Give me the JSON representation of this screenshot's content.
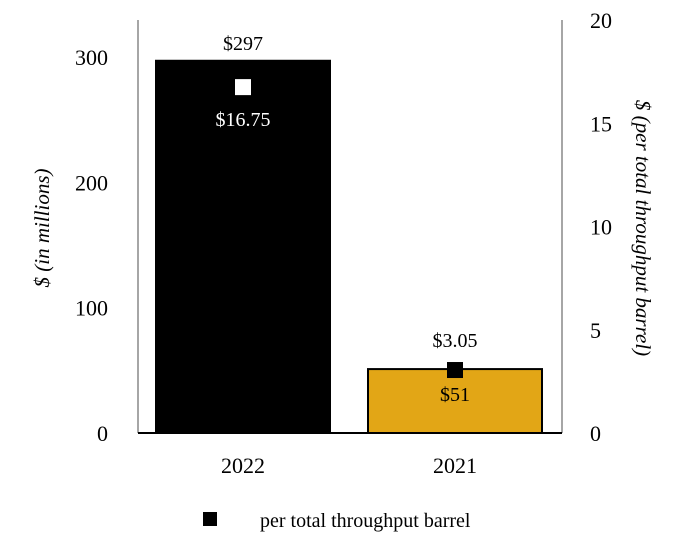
{
  "chart_data": {
    "type": "bar",
    "categories": [
      "2022",
      "2021"
    ],
    "series": [
      {
        "values": [
          297,
          51
        ],
        "value_labels": [
          "$297",
          "$51"
        ],
        "colors": [
          "#000000",
          "#e2a616"
        ],
        "axis": "left"
      },
      {
        "name": "per total throughput barrel",
        "type": "scatter",
        "values": [
          16.75,
          3.05
        ],
        "value_labels": [
          "$16.75",
          "$3.05"
        ],
        "marker_colors": [
          "#ffffff",
          "#000000"
        ],
        "axis": "right"
      }
    ],
    "ylabel": "$ (in millions)",
    "ylim": [
      0,
      300
    ],
    "yticks": [
      0,
      100,
      200,
      300
    ],
    "y2label": "$ (per total throughput barrel)",
    "y2lim": [
      0,
      20
    ],
    "y2ticks": [
      0,
      5,
      10,
      15,
      20
    ],
    "legend": {
      "placement": "bottom",
      "label": "per total throughput barrel"
    },
    "grid": false
  }
}
